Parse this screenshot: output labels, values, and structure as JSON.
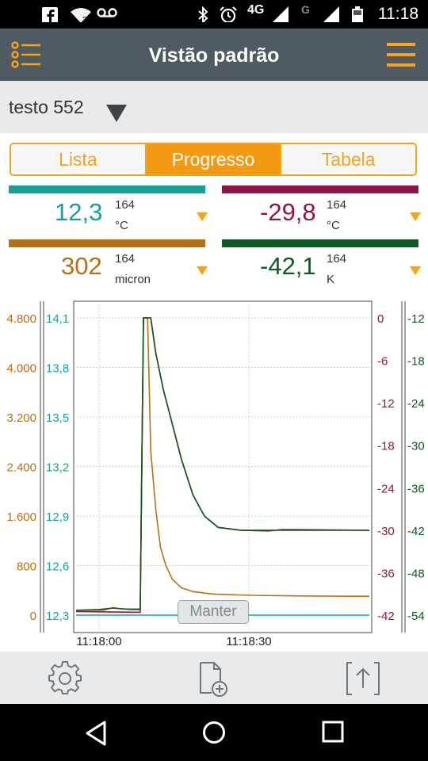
{
  "status_bar": {
    "time": "11:18",
    "network": "4G",
    "network2": "G"
  },
  "app_bar": {
    "title": "Vistão padrão"
  },
  "device": {
    "name": "testo 552"
  },
  "tabs": [
    {
      "label": "Lista",
      "active": false
    },
    {
      "label": "Progresso",
      "active": true
    },
    {
      "label": "Tabela",
      "active": false
    }
  ],
  "readings": [
    {
      "value": "12,3",
      "count": "164",
      "unit": "°C",
      "color": "#17a09a"
    },
    {
      "value": "-29,8",
      "count": "164",
      "unit": "°C",
      "color": "#8e1548"
    },
    {
      "value": "302",
      "count": "164",
      "unit": "micron",
      "color": "#b86f12"
    },
    {
      "value": "-42,1",
      "count": "164",
      "unit": "K",
      "color": "#0b5a1f"
    }
  ],
  "hold_label": "Manter",
  "chart_data": {
    "type": "line",
    "x_ticks": [
      "11:18:00",
      "11:18:30"
    ],
    "axes": {
      "micron": {
        "ticks": [
          "4.800",
          "4.000",
          "3.200",
          "2.400",
          "1.600",
          "800",
          "0"
        ],
        "range": [
          0,
          4800
        ],
        "color": "#b86f12"
      },
      "temp1": {
        "ticks": [
          "14,1",
          "13,8",
          "13,5",
          "13,2",
          "12,9",
          "12,6",
          "12,3"
        ],
        "range": [
          12.3,
          14.1
        ],
        "color": "#17a09a"
      },
      "temp2": {
        "ticks": [
          "0",
          "-6",
          "-12",
          "-18",
          "-24",
          "-30",
          "-36",
          "-42"
        ],
        "range": [
          -42,
          0
        ],
        "color": "#8e1548"
      },
      "kelvin": {
        "ticks": [
          "-12",
          "-18",
          "-24",
          "-30",
          "-36",
          "-42",
          "-48",
          "-54"
        ],
        "range": [
          -54,
          -12
        ],
        "color": "#0b5a1f"
      }
    },
    "series": [
      {
        "axis": "temp1",
        "color": "#17a09a",
        "points": [
          [
            0,
            12.3
          ],
          [
            14,
            12.3
          ],
          [
            15,
            12.3
          ],
          [
            64,
            12.3
          ]
        ]
      },
      {
        "axis": "micron",
        "color": "#b86f12",
        "points": [
          [
            0,
            80
          ],
          [
            6,
            80
          ],
          [
            8,
            120
          ],
          [
            10,
            100
          ],
          [
            14,
            100
          ],
          [
            14.7,
            4800
          ],
          [
            15.6,
            4800
          ],
          [
            16.3,
            2650
          ],
          [
            17.4,
            1700
          ],
          [
            18.4,
            1100
          ],
          [
            19.6,
            800
          ],
          [
            21,
            580
          ],
          [
            23,
            440
          ],
          [
            25.5,
            380
          ],
          [
            30,
            340
          ],
          [
            38,
            320
          ],
          [
            50,
            310
          ],
          [
            60,
            305
          ],
          [
            64,
            305
          ]
        ]
      },
      {
        "axis": "temp2",
        "color": "#8e1548",
        "points": [
          [
            0,
            -41.5
          ],
          [
            14,
            -41.6
          ],
          [
            14.7,
            0
          ],
          [
            16.3,
            0
          ],
          [
            17.4,
            -5
          ],
          [
            19,
            -10
          ],
          [
            21,
            -15
          ],
          [
            23,
            -20
          ],
          [
            25.5,
            -25
          ],
          [
            28,
            -28
          ],
          [
            31,
            -29.6
          ],
          [
            36,
            -30
          ],
          [
            42,
            -30.1
          ],
          [
            45,
            -29.9
          ],
          [
            64,
            -30
          ]
        ]
      },
      {
        "axis": "kelvin",
        "color": "#0b5a1f",
        "points": [
          [
            0,
            -53.3
          ],
          [
            5,
            -53.2
          ],
          [
            8,
            -53.0
          ],
          [
            12,
            -53.2
          ],
          [
            14,
            -53.2
          ],
          [
            14.7,
            -12
          ],
          [
            16.3,
            -12
          ],
          [
            17.4,
            -17
          ],
          [
            19,
            -22
          ],
          [
            21,
            -27
          ],
          [
            23,
            -32
          ],
          [
            25.5,
            -37
          ],
          [
            28,
            -40
          ],
          [
            31,
            -41.6
          ],
          [
            36,
            -42
          ],
          [
            64,
            -42
          ]
        ]
      }
    ]
  },
  "icons": {
    "status_left": [
      "facebook-icon",
      "wifi-icon",
      "voicemail-icon"
    ],
    "status_right": [
      "bluetooth-icon",
      "alarm-icon",
      "signal-icon",
      "signal-icon",
      "battery-icon"
    ],
    "toolbar": [
      "settings-icon",
      "new-document-icon",
      "export-icon"
    ],
    "nav": [
      "back-icon",
      "home-icon",
      "recents-icon"
    ]
  }
}
